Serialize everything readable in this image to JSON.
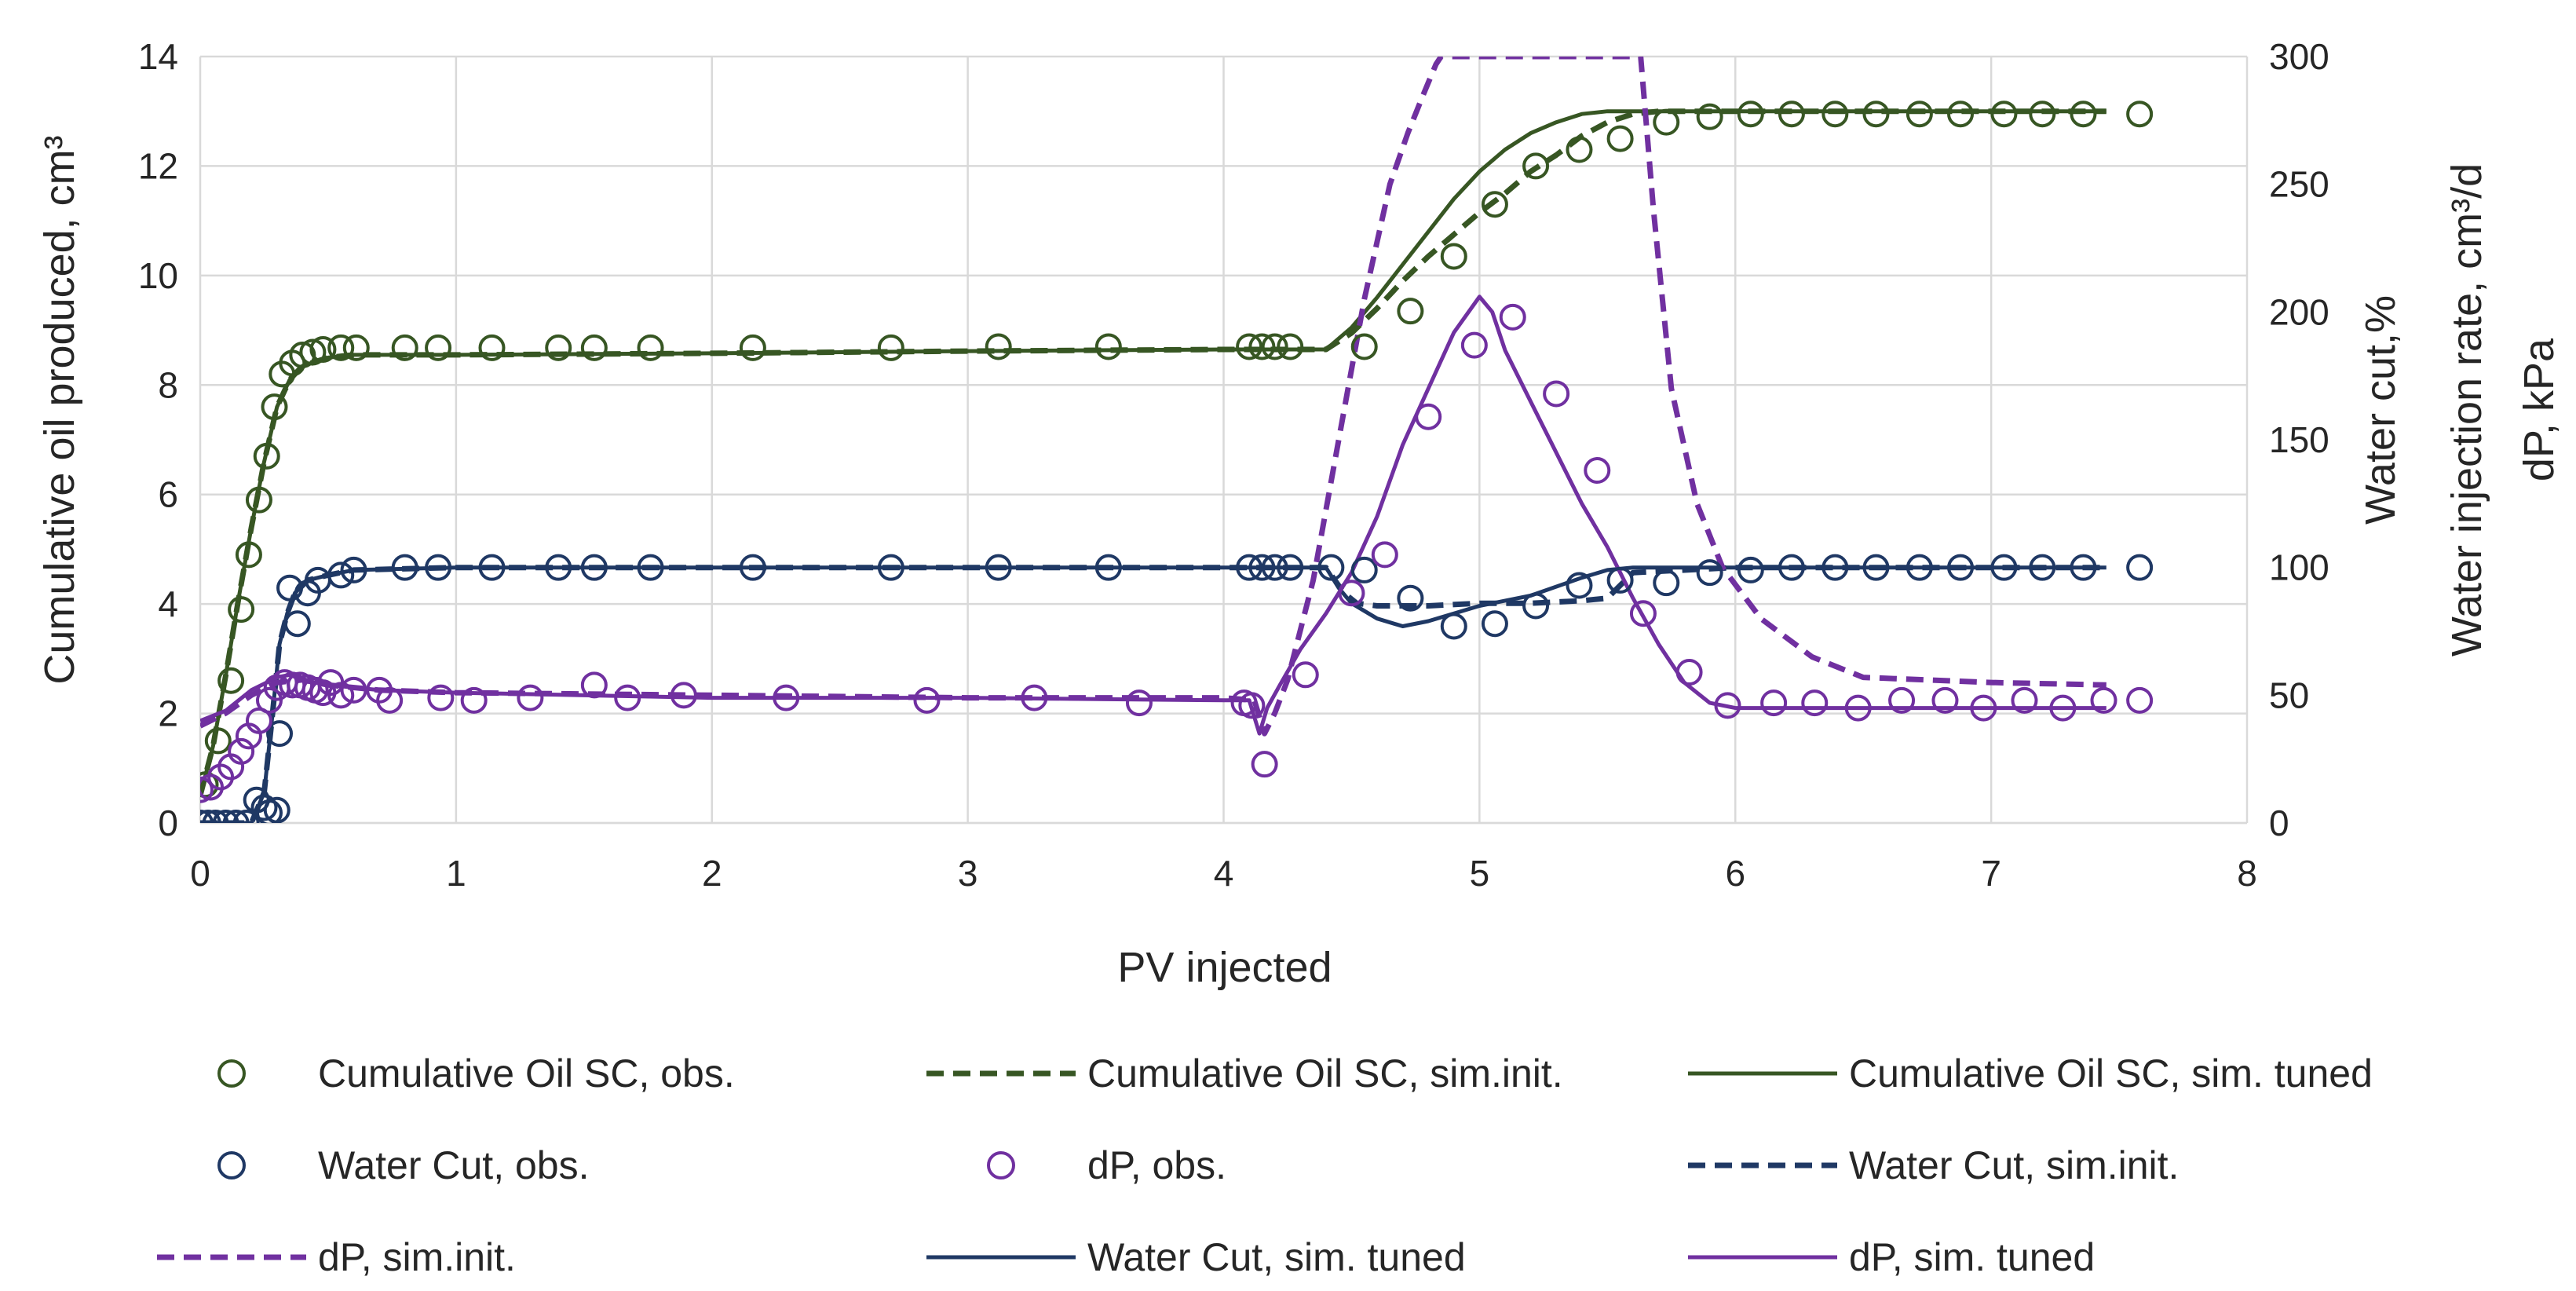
{
  "chart_data": {
    "type": "scatter",
    "title": "",
    "xlabel": "PV injected",
    "ylabel_left": "Cumulative oil produced, cm³",
    "ylabel_right": [
      "Water cut,%",
      "Water injection rate, cm³/d",
      "dP, kPa"
    ],
    "xlim": [
      0,
      8
    ],
    "ylim_left": [
      0,
      14
    ],
    "ylim_right": [
      0,
      300
    ],
    "x_ticks": [
      "0",
      "1",
      "2",
      "3",
      "4",
      "5",
      "6",
      "7",
      "8"
    ],
    "y_left_ticks": [
      "0",
      "2",
      "4",
      "6",
      "8",
      "10",
      "12",
      "14"
    ],
    "y_right_ticks": [
      "0",
      "50",
      "100",
      "150",
      "200",
      "250",
      "300"
    ],
    "grid": true,
    "legend_position": "bottom",
    "colors": {
      "oil": "#375623",
      "water": "#1f3864",
      "dp": "#7030a0"
    },
    "series": [
      {
        "id": "oil_obs",
        "name": "Cumulative Oil SC, obs.",
        "kind": "marker",
        "axis": "left",
        "color": "#375623",
        "x": [
          0.02,
          0.07,
          0.12,
          0.16,
          0.19,
          0.23,
          0.26,
          0.29,
          0.32,
          0.36,
          0.4,
          0.44,
          0.48,
          0.55,
          0.61,
          0.8,
          0.93,
          1.14,
          1.4,
          1.54,
          1.76,
          2.16,
          2.7,
          3.12,
          3.55,
          4.1,
          4.15,
          4.2,
          4.26,
          4.55,
          4.73,
          4.9,
          5.06,
          5.22,
          5.39,
          5.55,
          5.73,
          5.9,
          6.06,
          6.22,
          6.39,
          6.55,
          6.72,
          6.88,
          7.05,
          7.2,
          7.36,
          7.58
        ],
        "y": [
          0.7,
          1.5,
          2.6,
          3.9,
          4.9,
          5.9,
          6.7,
          7.6,
          8.2,
          8.4,
          8.55,
          8.6,
          8.65,
          8.68,
          8.68,
          8.68,
          8.68,
          8.68,
          8.68,
          8.68,
          8.68,
          8.68,
          8.68,
          8.7,
          8.7,
          8.7,
          8.7,
          8.7,
          8.7,
          8.7,
          9.35,
          10.35,
          11.3,
          12.0,
          12.3,
          12.5,
          12.8,
          12.9,
          12.95,
          12.95,
          12.95,
          12.95,
          12.95,
          12.95,
          12.95,
          12.95,
          12.95,
          12.95
        ]
      },
      {
        "id": "oil_init",
        "name": "Cumulative Oil SC, sim.init.",
        "kind": "dashed",
        "axis": "left",
        "color": "#375623",
        "x": [
          0,
          0.05,
          0.1,
          0.15,
          0.2,
          0.25,
          0.3,
          0.35,
          0.4,
          0.5,
          0.6,
          1.0,
          2.0,
          3.0,
          4.0,
          4.4,
          4.5,
          4.6,
          4.7,
          4.8,
          4.9,
          5.0,
          5.1,
          5.2,
          5.3,
          5.4,
          5.5,
          5.6,
          5.7,
          6.0,
          7.0,
          7.45
        ],
        "y": [
          0.5,
          1.4,
          2.7,
          4.1,
          5.4,
          6.6,
          7.6,
          8.1,
          8.35,
          8.5,
          8.55,
          8.55,
          8.58,
          8.62,
          8.65,
          8.65,
          8.95,
          9.4,
          9.9,
          10.35,
          10.75,
          11.15,
          11.5,
          11.9,
          12.2,
          12.55,
          12.8,
          12.95,
          13.0,
          13.0,
          13.0,
          13.0
        ]
      },
      {
        "id": "oil_tuned",
        "name": "Cumulative Oil SC, sim. tuned",
        "kind": "solid",
        "axis": "left",
        "color": "#375623",
        "x": [
          0,
          0.05,
          0.1,
          0.15,
          0.2,
          0.25,
          0.3,
          0.35,
          0.4,
          0.5,
          0.6,
          1.0,
          2.0,
          3.0,
          4.0,
          4.4,
          4.5,
          4.6,
          4.7,
          4.8,
          4.9,
          5.0,
          5.1,
          5.2,
          5.3,
          5.4,
          5.5,
          5.6,
          6.0,
          7.0,
          7.45
        ],
        "y": [
          0.5,
          1.4,
          2.7,
          4.1,
          5.4,
          6.6,
          7.6,
          8.1,
          8.35,
          8.5,
          8.55,
          8.55,
          8.58,
          8.62,
          8.65,
          8.65,
          9.05,
          9.6,
          10.2,
          10.8,
          11.4,
          11.9,
          12.3,
          12.6,
          12.8,
          12.95,
          13.0,
          13.0,
          13.0,
          13.0,
          13.0
        ]
      },
      {
        "id": "wc_obs",
        "name": "Water Cut, obs.",
        "kind": "marker",
        "axis": "right",
        "color": "#1f3864",
        "x": [
          0.0,
          0.03,
          0.06,
          0.1,
          0.14,
          0.18,
          0.22,
          0.25,
          0.27,
          0.3,
          0.31,
          0.35,
          0.38,
          0.42,
          0.46,
          0.55,
          0.6,
          0.8,
          0.93,
          1.14,
          1.4,
          1.54,
          1.76,
          2.16,
          2.7,
          3.12,
          3.55,
          4.1,
          4.15,
          4.2,
          4.26,
          4.42,
          4.55,
          4.73,
          4.9,
          5.06,
          5.22,
          5.39,
          5.55,
          5.73,
          5.9,
          6.06,
          6.22,
          6.39,
          6.55,
          6.72,
          6.88,
          7.05,
          7.2,
          7.36,
          7.58
        ],
        "y": [
          0,
          0,
          0,
          0,
          0,
          0,
          9,
          6,
          4,
          5,
          35,
          92,
          78,
          90,
          95,
          97,
          99,
          100,
          100,
          100,
          100,
          100,
          100,
          100,
          100,
          100,
          100,
          100,
          100,
          100,
          100,
          100,
          99,
          88,
          77,
          78,
          85,
          93,
          95,
          94,
          98,
          99,
          100,
          100,
          100,
          100,
          100,
          100,
          100,
          100,
          100
        ]
      },
      {
        "id": "wc_init",
        "name": "Water Cut, sim.init.",
        "kind": "dashed",
        "axis": "right",
        "color": "#1f3864",
        "x": [
          0,
          0.2,
          0.25,
          0.28,
          0.31,
          0.34,
          0.37,
          0.42,
          0.5,
          0.6,
          1.0,
          4.0,
          4.4,
          4.47,
          4.52,
          4.6,
          4.8,
          5.0,
          5.2,
          5.4,
          5.5,
          5.6,
          6.0,
          7.0,
          7.45
        ],
        "y": [
          0,
          0,
          12,
          40,
          70,
          82,
          90,
          95,
          97,
          99,
          100,
          100,
          100,
          90,
          86,
          85,
          85,
          86,
          86,
          87,
          88,
          98,
          100,
          100,
          100
        ]
      },
      {
        "id": "dp_obs",
        "name": "dP, obs.",
        "kind": "marker",
        "axis": "right",
        "color": "#7030a0",
        "x": [
          0.0,
          0.04,
          0.08,
          0.12,
          0.16,
          0.19,
          0.23,
          0.27,
          0.3,
          0.33,
          0.36,
          0.39,
          0.42,
          0.45,
          0.48,
          0.51,
          0.55,
          0.6,
          0.7,
          0.74,
          0.94,
          1.07,
          1.29,
          1.54,
          1.67,
          1.89,
          2.29,
          2.84,
          3.26,
          3.67,
          4.08,
          4.11,
          4.16,
          4.32,
          4.5,
          4.63,
          4.8,
          4.98,
          5.13,
          5.3,
          5.46,
          5.64,
          5.82,
          5.97,
          6.15,
          6.31,
          6.48,
          6.65,
          6.82,
          6.97,
          7.13,
          7.28,
          7.44,
          7.58
        ],
        "y": [
          13,
          14,
          18,
          22,
          28,
          34,
          40,
          48,
          53,
          55,
          54,
          54,
          53,
          52,
          51,
          55,
          50,
          52,
          52,
          48,
          49,
          48,
          49,
          54,
          49,
          50,
          49,
          48,
          49,
          47,
          47,
          46,
          23,
          58,
          90,
          105,
          159,
          187,
          198,
          168,
          138,
          82,
          59,
          46,
          47,
          47,
          45,
          48,
          48,
          45,
          48,
          45,
          48,
          48
        ]
      },
      {
        "id": "dp_init",
        "name": "dP, sim.init.",
        "kind": "dashed",
        "axis": "right",
        "color": "#7030a0",
        "x": [
          0,
          0.1,
          0.2,
          0.3,
          0.4,
          0.5,
          0.7,
          1.0,
          2.0,
          3.0,
          4.0,
          4.12,
          4.16,
          4.2,
          4.25,
          4.35,
          4.45,
          4.55,
          4.65,
          4.72,
          4.78,
          4.83,
          4.85,
          5.63,
          5.68,
          5.75,
          5.85,
          5.95,
          6.1,
          6.3,
          6.5,
          7.0,
          7.45
        ],
        "y": [
          38,
          43,
          50,
          55,
          56,
          54,
          52,
          51,
          50,
          49,
          49,
          48,
          35,
          43,
          56,
          95,
          150,
          205,
          250,
          270,
          285,
          297,
          300,
          300,
          240,
          170,
          125,
          100,
          80,
          65,
          57,
          55,
          54
        ]
      },
      {
        "id": "wc_tuned",
        "name": "Water Cut, sim. tuned",
        "kind": "solid",
        "axis": "right",
        "color": "#1f3864",
        "x": [
          0,
          0.2,
          0.25,
          0.28,
          0.31,
          0.34,
          0.37,
          0.42,
          0.5,
          0.6,
          1.0,
          4.0,
          4.4,
          4.45,
          4.5,
          4.6,
          4.7,
          4.8,
          5.0,
          5.2,
          5.4,
          5.5,
          5.6,
          6.0,
          7.0,
          7.45
        ],
        "y": [
          0,
          0,
          12,
          40,
          70,
          82,
          90,
          95,
          97,
          99,
          100,
          100,
          100,
          92,
          86,
          80,
          77,
          79,
          85,
          89,
          96,
          99,
          100,
          100,
          100,
          100
        ]
      },
      {
        "id": "dp_tuned",
        "name": "dP, sim. tuned",
        "kind": "solid",
        "axis": "right",
        "color": "#7030a0",
        "x": [
          0,
          0.1,
          0.2,
          0.3,
          0.35,
          0.4,
          0.5,
          0.7,
          1.0,
          2.0,
          3.0,
          4.0,
          4.1,
          4.14,
          4.17,
          4.22,
          4.3,
          4.4,
          4.5,
          4.6,
          4.7,
          4.8,
          4.9,
          5.0,
          5.05,
          5.1,
          5.2,
          5.3,
          5.4,
          5.5,
          5.6,
          5.7,
          5.8,
          5.9,
          6.0,
          6.5,
          7.0,
          7.45
        ],
        "y": [
          40,
          44,
          52,
          57,
          58,
          56,
          54,
          52,
          51,
          49,
          49,
          48,
          48,
          35,
          45,
          54,
          68,
          82,
          98,
          120,
          148,
          170,
          192,
          206,
          200,
          185,
          165,
          145,
          125,
          108,
          88,
          70,
          55,
          47,
          45,
          45,
          45,
          45
        ]
      }
    ]
  }
}
